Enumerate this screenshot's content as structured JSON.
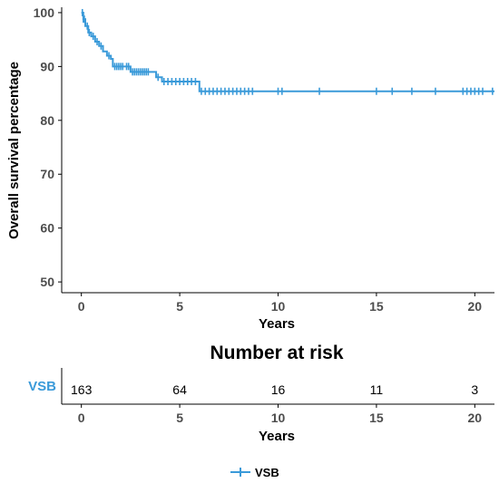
{
  "chart_data": [
    {
      "type": "line",
      "subtype": "kaplan-meier",
      "title": "",
      "xlabel": "Years",
      "ylabel": "Overall survival percentage",
      "xlim": [
        -1,
        21
      ],
      "ylim": [
        48,
        101
      ],
      "xticks": [
        "0",
        "5",
        "10",
        "15",
        "20"
      ],
      "yticks": [
        "50",
        "60",
        "70",
        "80",
        "90",
        "100"
      ],
      "grid": false,
      "legend_position": "bottom",
      "series": [
        {
          "name": "VSB",
          "color": "#3a9ad9",
          "x": [
            0,
            0.1,
            0.2,
            0.35,
            0.5,
            0.7,
            0.9,
            1.1,
            1.3,
            1.5,
            1.6,
            2.2,
            2.5,
            3.5,
            3.8,
            4.1,
            5.9,
            6.0,
            21
          ],
          "y": [
            100,
            98.8,
            97.5,
            96.3,
            95.6,
            94.6,
            93.8,
            92.8,
            92.0,
            91.4,
            90.0,
            90.0,
            89.0,
            89.0,
            88.0,
            87.2,
            87.2,
            85.4,
            85.4
          ],
          "censor_x": [
            0.05,
            0.1,
            0.15,
            0.3,
            0.4,
            0.6,
            0.8,
            1.0,
            1.4,
            1.7,
            1.8,
            1.9,
            2.0,
            2.1,
            2.3,
            2.4,
            2.6,
            2.7,
            2.8,
            2.9,
            3.0,
            3.1,
            3.2,
            3.3,
            3.4,
            3.9,
            4.2,
            4.4,
            4.6,
            4.8,
            5.0,
            5.2,
            5.4,
            5.6,
            5.8,
            6.1,
            6.3,
            6.5,
            6.7,
            6.9,
            7.1,
            7.3,
            7.5,
            7.7,
            7.9,
            8.1,
            8.3,
            8.5,
            8.7,
            10.0,
            10.2,
            12.1,
            15.0,
            15.8,
            16.8,
            18.0,
            19.4,
            19.6,
            19.8,
            20.0,
            20.2,
            20.4,
            20.9
          ]
        }
      ]
    },
    {
      "type": "table",
      "title": "Number at risk",
      "xlabel": "Years",
      "xticks": [
        "0",
        "5",
        "10",
        "15",
        "20"
      ],
      "rows": [
        {
          "name": "VSB",
          "x": [
            0,
            5,
            10,
            15,
            20
          ],
          "values": [
            "163",
            "64",
            "16",
            "11",
            "3"
          ]
        }
      ]
    }
  ],
  "legend": {
    "label": "VSB"
  }
}
